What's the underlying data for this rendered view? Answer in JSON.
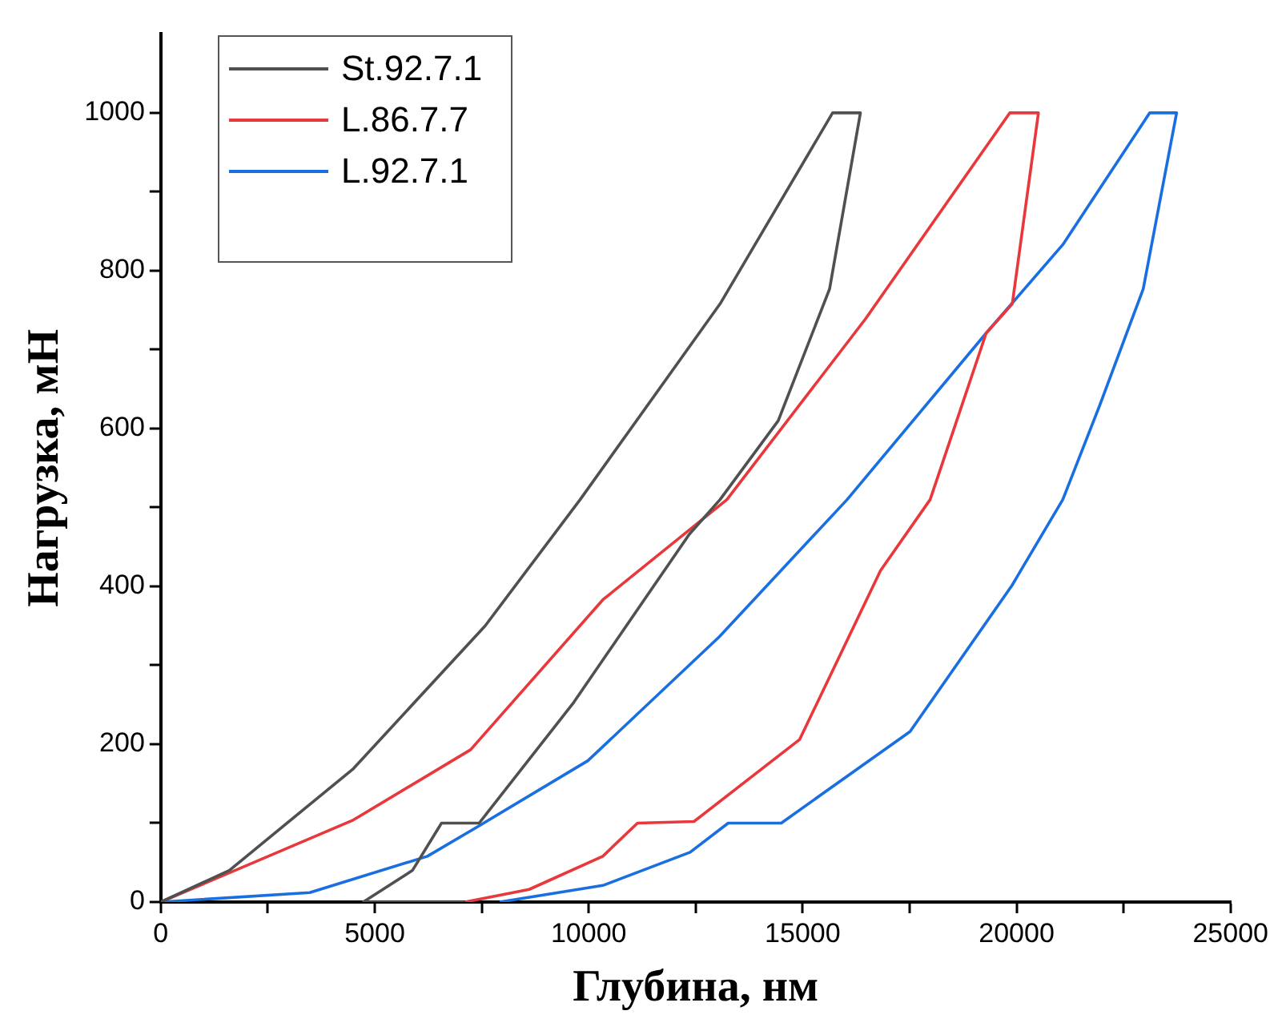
{
  "chart_data": {
    "type": "line",
    "xlabel": "Глубина, нм",
    "ylabel": "Нагрузка, мН",
    "xlim": [
      0,
      25000
    ],
    "ylim": [
      0,
      1100
    ],
    "xticks": [
      0,
      {
        "value": 2500,
        "label": null
      },
      5000,
      {
        "value": 7500,
        "label": null
      },
      10000,
      {
        "value": 12500,
        "label": null
      },
      15000,
      {
        "value": 17500,
        "label": null
      },
      20000,
      {
        "value": 22500,
        "label": null
      },
      25000
    ],
    "yticks": [
      0,
      {
        "value": 100,
        "label": null
      },
      200,
      {
        "value": 300,
        "label": null
      },
      400,
      {
        "value": 500,
        "label": null
      },
      600,
      {
        "value": 700,
        "label": null
      },
      800,
      {
        "value": 900,
        "label": null
      },
      1000
    ],
    "grid": false,
    "legend": "top left",
    "marker": "none",
    "line_style": "solid",
    "series": [
      {
        "name": "St.92.7.1",
        "color": "#505050",
        "x": [
          0,
          1600,
          4500,
          7580,
          9800,
          13070,
          15700,
          16350,
          15630,
          14430,
          13070,
          12350,
          9650,
          7440,
          6560,
          5880,
          4730,
          7100
        ],
        "values": [
          0,
          40,
          169,
          350,
          510,
          758,
          1000,
          1000,
          777,
          610,
          510,
          466,
          253,
          100,
          100,
          40,
          0,
          0
        ]
      },
      {
        "name": "L.86.7.7",
        "color": "#e8383b",
        "x": [
          0,
          4500,
          7240,
          10330,
          13230,
          16470,
          19840,
          20510,
          19900,
          19290,
          17980,
          16820,
          14930,
          12460,
          11140,
          10330,
          8610,
          7110
        ],
        "values": [
          0,
          104,
          193,
          383,
          510,
          739,
          1000,
          1000,
          758,
          721,
          510,
          420,
          206,
          102,
          100,
          58,
          16,
          0
        ]
      },
      {
        "name": "L.92.7.1",
        "color": "#1a6fe0",
        "x": [
          0,
          3480,
          6230,
          7420,
          9980,
          13050,
          16040,
          19290,
          21080,
          23110,
          23740,
          22960,
          21940,
          21080,
          19890,
          17510,
          14500,
          13260,
          12370,
          10330,
          7920
        ],
        "values": [
          0,
          12,
          58,
          96,
          179,
          336,
          510,
          721,
          833,
          1000,
          1000,
          777,
          629,
          510,
          401,
          216,
          100,
          100,
          63,
          21,
          0
        ]
      }
    ]
  }
}
